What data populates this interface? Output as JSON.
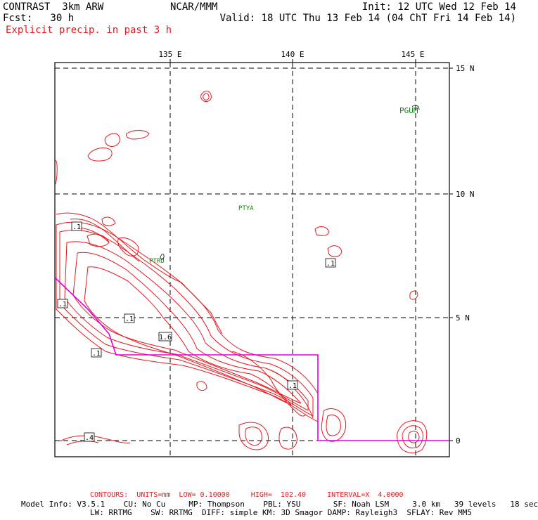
{
  "header": {
    "model_name": "CONTRAST  3km ARW",
    "forecast": "Fcst:   30 h",
    "org": "NCAR/MMM",
    "init": "Init: 12 UTC Wed 12 Feb 14",
    "valid": "Valid: 18 UTC Thu 13 Feb 14 (04 ChT Fri 14 Feb 14)",
    "field": "Explicit precip. in past 3 h"
  },
  "axes": {
    "lon_labels": [
      "135 E",
      "140 E",
      "145 E"
    ],
    "lat_labels": [
      "15 N",
      "10 N",
      "5 N",
      "0"
    ]
  },
  "stations": [
    "PGUM",
    "PTYA",
    "PTRO"
  ],
  "contour_labels": [
    ".1",
    ".1",
    ".1",
    ".1",
    "1.6",
    ".1",
    ".1",
    ".4"
  ],
  "footer": {
    "contours": "CONTOURS:  UNITS=mm  LOW= 0.10000     HIGH=  102.40     INTERVAL=X  4.0000",
    "model_info_1": "Model Info: V3.5.1    CU: No Cu     MP: Thompson    PBL: YSU       SF: Noah LSM     3.0 km   39 levels   18 sec",
    "model_info_2": "LW: RRTMG    SW: RRTMG  DIFF: simple KM: 3D Smagor DAMP: Rayleigh3  SFLAY: Rev MM5"
  },
  "colors": {
    "contour": "#e8181e",
    "boundary": "#e000e0",
    "station": "#118811",
    "grid": "#000000"
  }
}
